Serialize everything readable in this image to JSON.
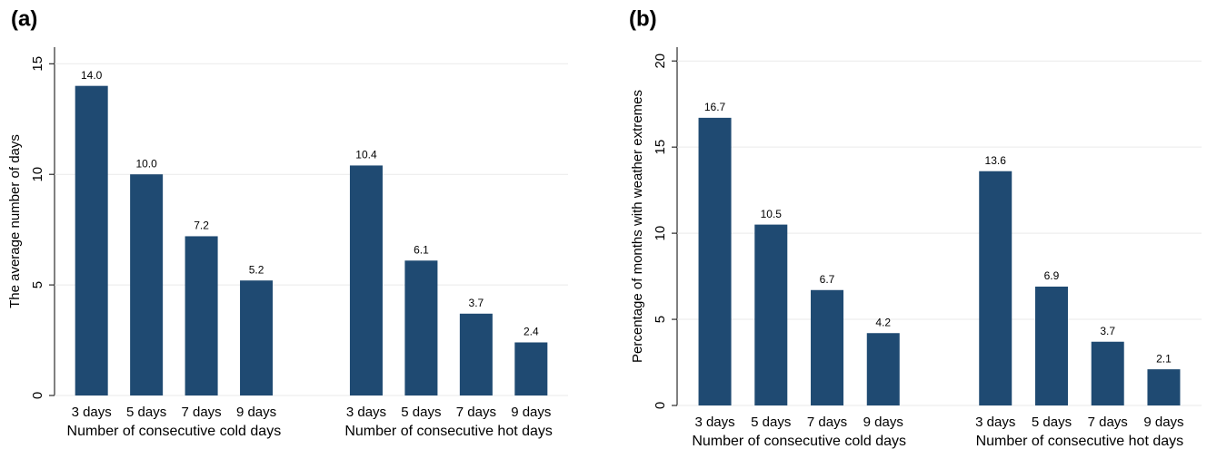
{
  "chart_data": [
    {
      "type": "bar",
      "title": "(a)",
      "ylabel": "The average number of days",
      "color": "#1f4a72",
      "ylim": [
        0,
        15.75
      ],
      "yticks": [
        0,
        5,
        10,
        15
      ],
      "grid": true,
      "groups": [
        {
          "name": "Number of consecutive cold days",
          "categories": [
            "3 days",
            "5 days",
            "7 days",
            "9 days"
          ],
          "values": [
            14.0,
            10.0,
            7.2,
            5.2
          ],
          "value_labels": [
            "14.0",
            "10.0",
            "7.2",
            "5.2"
          ]
        },
        {
          "name": "Number of consecutive hot days",
          "categories": [
            "3 days",
            "5 days",
            "7 days",
            "9 days"
          ],
          "values": [
            10.4,
            6.1,
            3.7,
            2.4
          ],
          "value_labels": [
            "10.4",
            "6.1",
            "3.7",
            "2.4"
          ]
        }
      ]
    },
    {
      "type": "bar",
      "title": "(b)",
      "ylabel": "Percentage of months with weather extremes",
      "color": "#1f4a72",
      "ylim": [
        0,
        20.8
      ],
      "yticks": [
        0,
        5,
        10,
        15,
        20
      ],
      "grid": true,
      "groups": [
        {
          "name": "Number of consecutive cold days",
          "categories": [
            "3 days",
            "5 days",
            "7 days",
            "9 days"
          ],
          "values": [
            16.7,
            10.5,
            6.7,
            4.2
          ],
          "value_labels": [
            "16.7",
            "10.5",
            "6.7",
            "4.2"
          ]
        },
        {
          "name": "Number of consecutive hot days",
          "categories": [
            "3 days",
            "5 days",
            "7 days",
            "9 days"
          ],
          "values": [
            13.6,
            6.9,
            3.7,
            2.1
          ],
          "value_labels": [
            "13.6",
            "6.9",
            "3.7",
            "2.1"
          ]
        }
      ]
    }
  ]
}
